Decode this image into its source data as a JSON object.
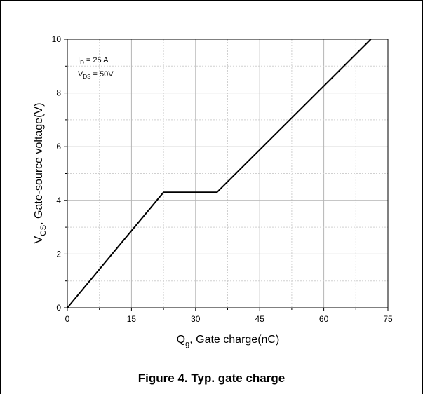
{
  "caption": "Figure 4. Typ. gate charge",
  "chart_data": {
    "type": "line",
    "title": "",
    "xlabel": {
      "main": "Q",
      "sub": "g",
      "rest": ", Gate charge(nC)"
    },
    "ylabel": {
      "main": "V",
      "sub": "GS",
      "rest": ", Gate-source voltage(V)"
    },
    "xlim": [
      0,
      75
    ],
    "ylim": [
      0,
      10
    ],
    "x_ticks": [
      0,
      15,
      30,
      45,
      60,
      75
    ],
    "y_ticks": [
      0,
      2,
      4,
      6,
      8,
      10
    ],
    "grid": true,
    "series": [
      {
        "x": [
          0,
          22.5,
          35,
          71
        ],
        "y": [
          0,
          4.3,
          4.3,
          10
        ]
      }
    ],
    "annotations": [
      {
        "main": "I",
        "sub": "D",
        "rest": " = 25 A"
      },
      {
        "main": "V",
        "sub": "DS",
        "rest": " = 50V"
      }
    ]
  }
}
